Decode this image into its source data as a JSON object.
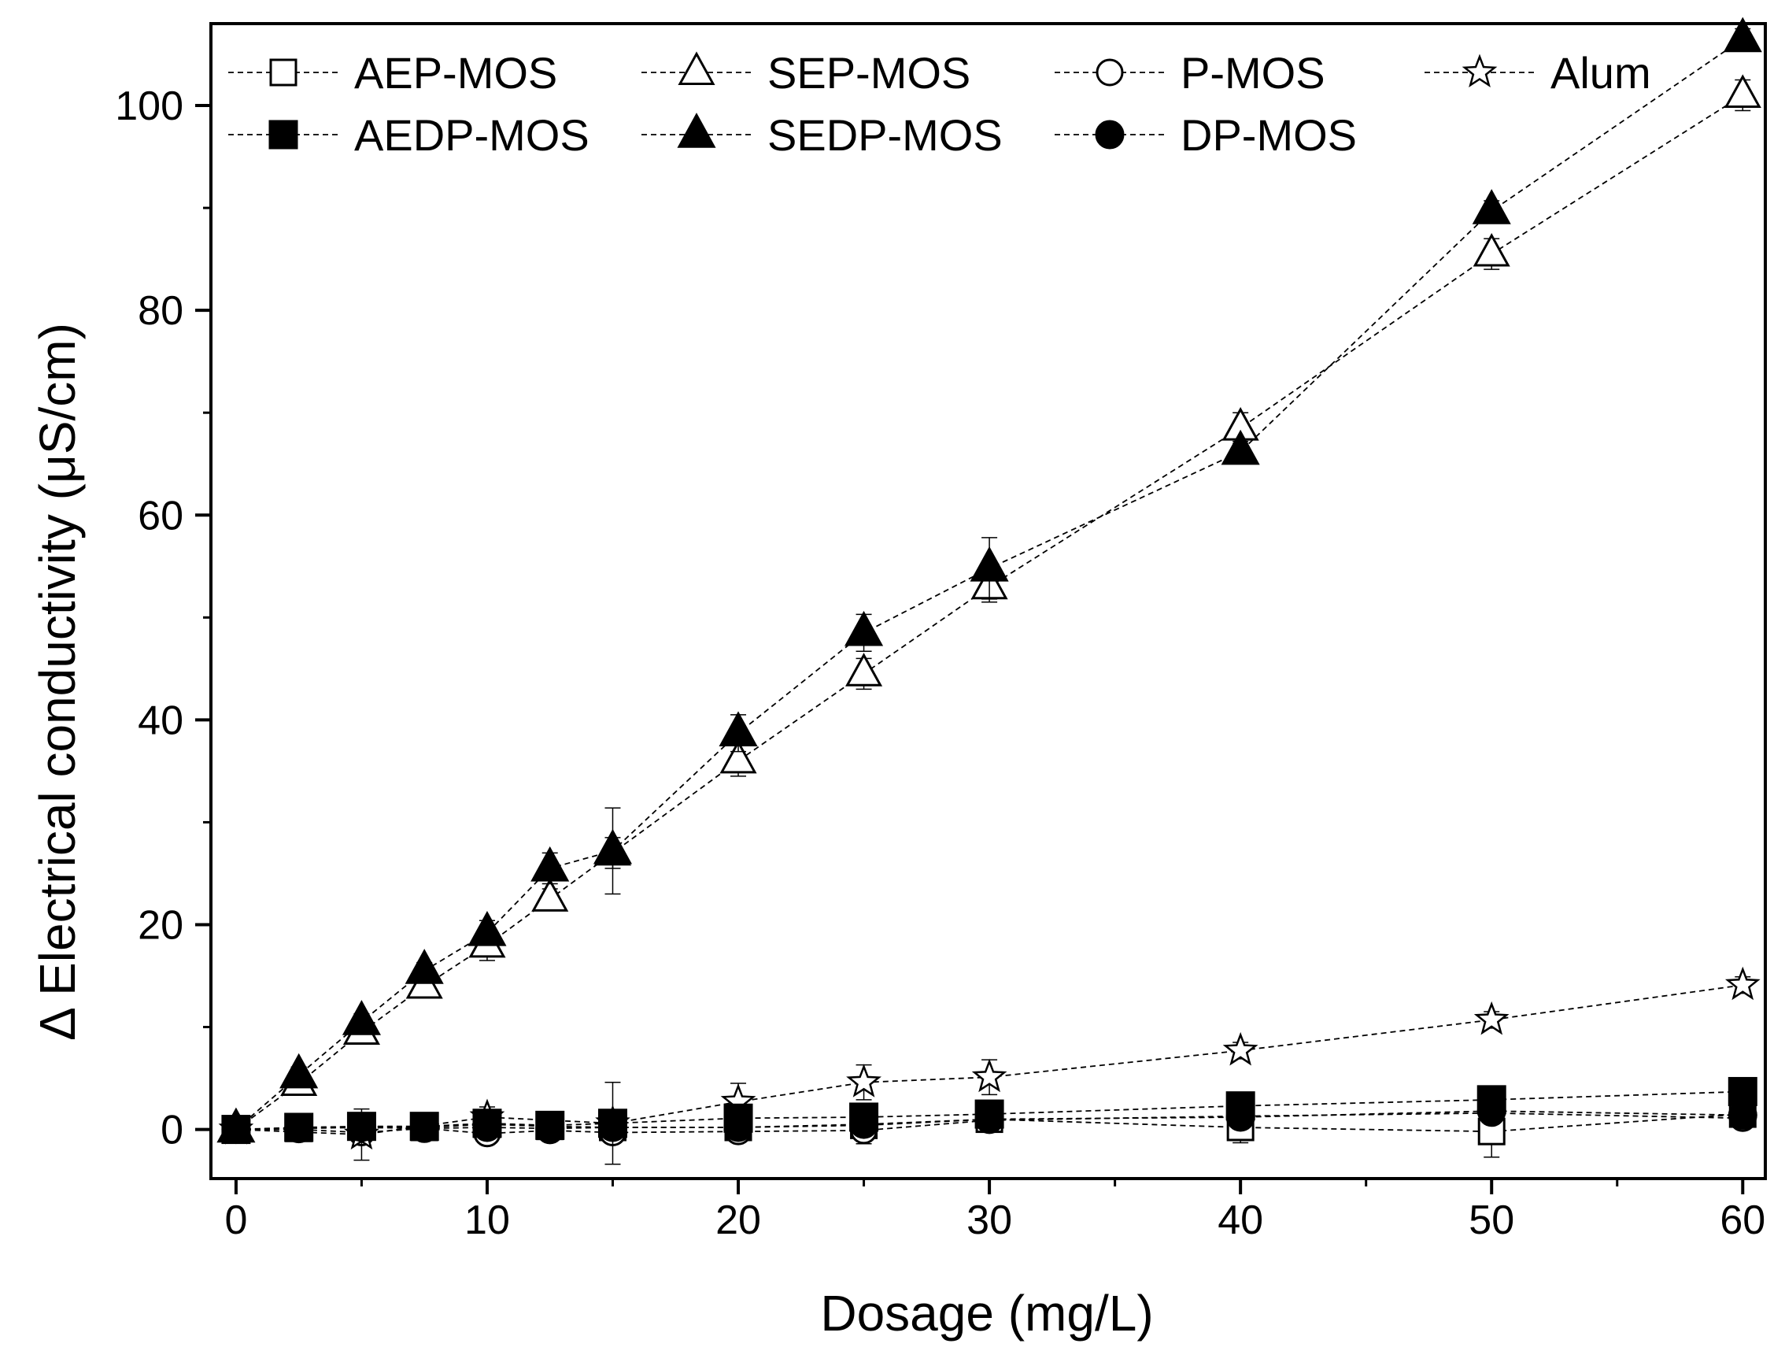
{
  "chart_data": {
    "type": "line",
    "title": "",
    "xlabel": "Dosage (mg/L)",
    "ylabel": "Δ Electrical conductivity (μS/cm)",
    "xlim": [
      -1,
      60.9
    ],
    "ylim": [
      -4.8,
      108
    ],
    "xticks": [
      0,
      10,
      20,
      30,
      40,
      50,
      60
    ],
    "yticks": [
      0,
      20,
      40,
      60,
      80,
      100
    ],
    "grid": false,
    "legend_position": "top",
    "series": [
      {
        "name": "AEP-MOS",
        "marker": "square",
        "filled": false,
        "x": [
          0,
          2.5,
          5,
          7.5,
          10,
          12.5,
          15,
          20,
          25,
          30,
          40,
          50,
          60
        ],
        "y": [
          0,
          0.1,
          0.3,
          0.2,
          0.5,
          0.3,
          0.2,
          0.2,
          0.4,
          1.0,
          0.2,
          -0.2,
          1.5
        ],
        "err": [
          0.5,
          0.5,
          0.8,
          0.5,
          0.8,
          0.6,
          0.6,
          0.8,
          0.8,
          0.8,
          1.5,
          2.5,
          1.0
        ]
      },
      {
        "name": "SEP-MOS",
        "marker": "triangle",
        "filled": false,
        "x": [
          0,
          2.5,
          5,
          7.5,
          10,
          12.5,
          15,
          20,
          25,
          30,
          40,
          50,
          60
        ],
        "y": [
          0,
          4.5,
          9.5,
          14.0,
          18.0,
          22.5,
          27.0,
          36.0,
          44.5,
          53.0,
          68.5,
          85.5,
          101.0
        ],
        "err": [
          0.5,
          0.8,
          0.8,
          0.8,
          1.5,
          1.0,
          1.5,
          1.5,
          1.5,
          1.5,
          1.5,
          1.5,
          1.5
        ]
      },
      {
        "name": "P-MOS",
        "marker": "circle",
        "filled": false,
        "x": [
          0,
          2.5,
          5,
          7.5,
          10,
          12.5,
          15,
          20,
          25,
          30,
          40,
          50,
          60
        ],
        "y": [
          0,
          0,
          -0.3,
          0.1,
          -0.4,
          -0.1,
          -0.3,
          -0.2,
          -0.1,
          0.9,
          1.3,
          1.6,
          1.1
        ],
        "err": [
          0.5,
          0.5,
          0.8,
          0.5,
          1.0,
          0.8,
          0.8,
          1.0,
          1.3,
          0.8,
          0.8,
          0.8,
          0.8
        ]
      },
      {
        "name": "Alum",
        "marker": "star",
        "filled": false,
        "x": [
          0,
          5,
          10,
          15,
          20,
          25,
          30,
          40,
          50,
          60
        ],
        "y": [
          0,
          -0.5,
          1.2,
          0.6,
          2.7,
          4.6,
          5.1,
          7.7,
          10.7,
          14.1
        ],
        "err": [
          0.5,
          2.5,
          1.0,
          4.0,
          1.8,
          1.7,
          1.7,
          0.8,
          0.8,
          0.8
        ]
      },
      {
        "name": "AEDP-MOS",
        "marker": "square",
        "filled": true,
        "x": [
          0,
          2.5,
          5,
          7.5,
          10,
          12.5,
          15,
          20,
          25,
          30,
          40,
          50,
          60
        ],
        "y": [
          0,
          0.2,
          0.3,
          0.3,
          0.6,
          0.4,
          0.6,
          1.1,
          1.2,
          1.5,
          2.3,
          2.9,
          3.7
        ],
        "err": [
          0.5,
          0.5,
          0.6,
          0.5,
          0.6,
          0.5,
          0.6,
          0.6,
          0.6,
          0.8,
          0.8,
          0.8,
          0.8
        ]
      },
      {
        "name": "SEDP-MOS",
        "marker": "triangle",
        "filled": true,
        "x": [
          0,
          2.5,
          5,
          7.5,
          10,
          12.5,
          15,
          20,
          25,
          30,
          40,
          50,
          60
        ],
        "y": [
          0,
          5.3,
          10.5,
          15.5,
          19.2,
          25.5,
          27.2,
          38.7,
          48.5,
          54.8,
          66.2,
          89.7,
          106.5
        ],
        "err": [
          0.5,
          0.8,
          0.8,
          0.8,
          1.2,
          1.5,
          4.2,
          1.8,
          1.8,
          3.0,
          1.0,
          1.0,
          1.0
        ]
      },
      {
        "name": "DP-MOS",
        "marker": "circle",
        "filled": true,
        "x": [
          0,
          2.5,
          5,
          7.5,
          10,
          12.5,
          15,
          20,
          25,
          30,
          40,
          50,
          60
        ],
        "y": [
          0,
          0.1,
          0.2,
          0.1,
          0.2,
          0.1,
          0.2,
          0.2,
          0.5,
          1.0,
          1.2,
          1.8,
          1.4
        ],
        "err": [
          0.5,
          0.5,
          0.6,
          0.5,
          0.6,
          0.5,
          0.6,
          0.6,
          0.6,
          0.6,
          0.8,
          0.8,
          0.8
        ]
      }
    ]
  }
}
